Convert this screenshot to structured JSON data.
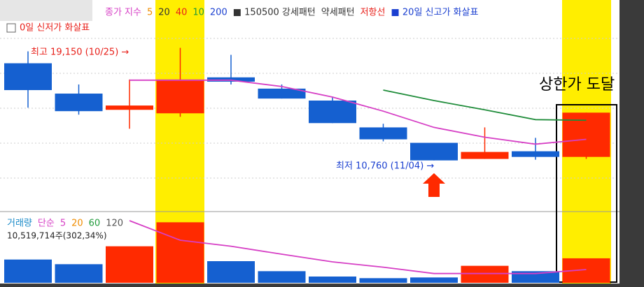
{
  "chart_data": [
    {
      "type": "candlestick",
      "legend_items": [
        {
          "text": "종가 지수",
          "color": "#d63fc5"
        },
        {
          "text": "5",
          "color": "#f08c00"
        },
        {
          "text": "20",
          "color": "#333333"
        },
        {
          "text": "40",
          "color": "#e8201a"
        },
        {
          "text": "10",
          "color": "#1f9a3a"
        },
        {
          "text": "200",
          "color": "#1a3fd0"
        },
        {
          "text": "■ 150500 강세패턴",
          "color": "#333333"
        },
        {
          "text": "약세패턴",
          "color": "#333333"
        },
        {
          "text": "저항선",
          "color": "#e8201a"
        },
        {
          "text": "■ 20일 신고가 화살표",
          "color": "#1a3fd0"
        }
      ],
      "legend_line2": {
        "text": "0일 신저가 화살표",
        "color": "#e8201a"
      },
      "categories": [
        null,
        null,
        null,
        null,
        null,
        null,
        null,
        null,
        null,
        null,
        null,
        null
      ],
      "open": [
        18000,
        15740,
        14530,
        14270,
        16950,
        16110,
        15220,
        13220,
        12070,
        10870,
        11440,
        11020
      ],
      "high": [
        18890,
        16420,
        16790,
        19150,
        18630,
        16420,
        15480,
        13490,
        12070,
        13220,
        12440,
        14320
      ],
      "low": [
        14690,
        14170,
        13120,
        14010,
        16420,
        15370,
        13540,
        12180,
        10760,
        10870,
        10810,
        10870
      ],
      "close": [
        16000,
        14430,
        14850,
        16790,
        16630,
        15370,
        13540,
        12330,
        10760,
        11390,
        11020,
        14320
      ],
      "up_color": "#ff2a00",
      "down_color": "#1560d0",
      "ylim": [
        7100,
        22300
      ],
      "series": [
        {
          "color": "#d63fc5",
          "values": [
            null,
            null,
            16740,
            16740,
            16740,
            16270,
            15480,
            14430,
            13220,
            12490,
            11970,
            12330
          ]
        },
        {
          "color": "#1f8c3a",
          "values": [
            null,
            null,
            null,
            null,
            null,
            null,
            null,
            16000,
            15220,
            14530,
            13800,
            13750
          ]
        }
      ],
      "annotations": [
        "최고 19,150 (10/25) →",
        "최저 10,760 (11/04) →",
        "상한가 도달"
      ]
    },
    {
      "type": "bar",
      "legend_items": [
        {
          "text": "거래량",
          "color": "#1a8ac8"
        },
        {
          "text": "단순",
          "color": "#d63fc5"
        },
        {
          "text": "5",
          "color": "#d63fc5"
        },
        {
          "text": "20",
          "color": "#f08c00"
        },
        {
          "text": "60",
          "color": "#1f9a3a"
        },
        {
          "text": "120",
          "color": "#555555"
        }
      ],
      "categories": [
        null,
        null,
        null,
        null,
        null,
        null,
        null,
        null,
        null,
        null,
        null,
        null
      ],
      "values": [
        10000000,
        8000000,
        15700000,
        26000000,
        9300000,
        5000000,
        2700000,
        2000000,
        2300000,
        7300000,
        5000000,
        10519714
      ],
      "colors": [
        "#1560d0",
        "#1560d0",
        "#ff2a00",
        "#ff2a00",
        "#1560d0",
        "#1560d0",
        "#1560d0",
        "#1560d0",
        "#1560d0",
        "#ff2a00",
        "#1560d0",
        "#ff2a00"
      ],
      "ylim": [
        0,
        30000000
      ],
      "series": [
        {
          "color": "#d63fc5",
          "values": [
            null,
            null,
            26700000,
            18300000,
            15700000,
            12300000,
            9000000,
            6700000,
            4000000,
            4000000,
            4000000,
            5700000
          ]
        }
      ],
      "annotation": "10,519,714주(302,34%)"
    }
  ]
}
